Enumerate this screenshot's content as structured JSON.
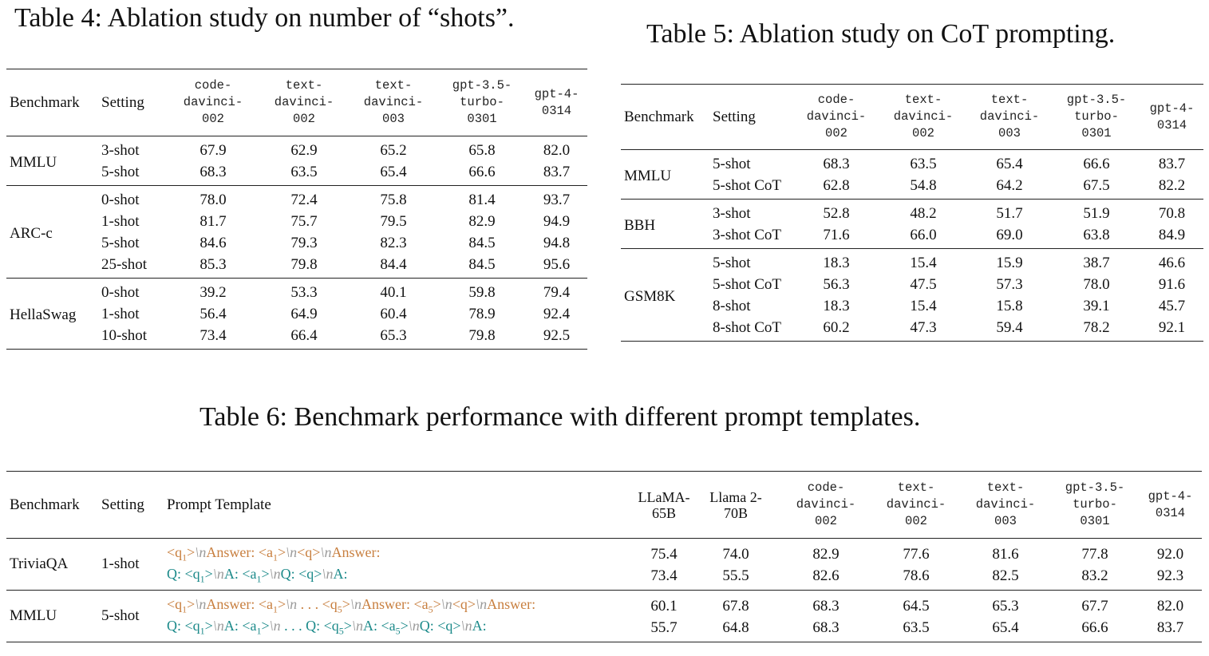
{
  "table4": {
    "caption": "Table 4: Ablation study on number of “shots”.",
    "headers": {
      "benchmark": "Benchmark",
      "setting": "Setting",
      "models": [
        [
          "code-",
          "davinci-",
          "002"
        ],
        [
          "text-",
          "davinci-",
          "002"
        ],
        [
          "text-",
          "davinci-",
          "003"
        ],
        [
          "gpt-3.5-",
          "turbo-",
          "0301"
        ],
        [
          "gpt-4-",
          "0314"
        ]
      ]
    },
    "groups": [
      {
        "benchmark": "MMLU",
        "rows": [
          {
            "setting": "3-shot",
            "values": [
              "67.9",
              "62.9",
              "65.2",
              "65.8",
              "82.0"
            ]
          },
          {
            "setting": "5-shot",
            "values": [
              "68.3",
              "63.5",
              "65.4",
              "66.6",
              "83.7"
            ]
          }
        ]
      },
      {
        "benchmark": "ARC-c",
        "rows": [
          {
            "setting": "0-shot",
            "values": [
              "78.0",
              "72.4",
              "75.8",
              "81.4",
              "93.7"
            ]
          },
          {
            "setting": "1-shot",
            "values": [
              "81.7",
              "75.7",
              "79.5",
              "82.9",
              "94.9"
            ]
          },
          {
            "setting": "5-shot",
            "values": [
              "84.6",
              "79.3",
              "82.3",
              "84.5",
              "94.8"
            ]
          },
          {
            "setting": "25-shot",
            "values": [
              "85.3",
              "79.8",
              "84.4",
              "84.5",
              "95.6"
            ]
          }
        ]
      },
      {
        "benchmark": "HellaSwag",
        "rows": [
          {
            "setting": "0-shot",
            "values": [
              "39.2",
              "53.3",
              "40.1",
              "59.8",
              "79.4"
            ]
          },
          {
            "setting": "1-shot",
            "values": [
              "56.4",
              "64.9",
              "60.4",
              "78.9",
              "92.4"
            ]
          },
          {
            "setting": "10-shot",
            "values": [
              "73.4",
              "66.4",
              "65.3",
              "79.8",
              "92.5"
            ]
          }
        ]
      }
    ]
  },
  "table5": {
    "caption": "Table 5: Ablation study on CoT prompting.",
    "headers": {
      "benchmark": "Benchmark",
      "setting": "Setting",
      "models": [
        [
          "code-",
          "davinci-",
          "002"
        ],
        [
          "text-",
          "davinci-",
          "002"
        ],
        [
          "text-",
          "davinci-",
          "003"
        ],
        [
          "gpt-3.5-",
          "turbo-",
          "0301"
        ],
        [
          "gpt-4-",
          "0314"
        ]
      ]
    },
    "groups": [
      {
        "benchmark": "MMLU",
        "rows": [
          {
            "setting": "5-shot",
            "values": [
              "68.3",
              "63.5",
              "65.4",
              "66.6",
              "83.7"
            ]
          },
          {
            "setting": "5-shot CoT",
            "values": [
              "62.8",
              "54.8",
              "64.2",
              "67.5",
              "82.2"
            ]
          }
        ]
      },
      {
        "benchmark": "BBH",
        "rows": [
          {
            "setting": "3-shot",
            "values": [
              "52.8",
              "48.2",
              "51.7",
              "51.9",
              "70.8"
            ]
          },
          {
            "setting": "3-shot CoT",
            "values": [
              "71.6",
              "66.0",
              "69.0",
              "63.8",
              "84.9"
            ]
          }
        ]
      },
      {
        "benchmark": "GSM8K",
        "rows": [
          {
            "setting": "5-shot",
            "values": [
              "18.3",
              "15.4",
              "15.9",
              "38.7",
              "46.6"
            ]
          },
          {
            "setting": "5-shot CoT",
            "values": [
              "56.3",
              "47.5",
              "57.3",
              "78.0",
              "91.6"
            ]
          },
          {
            "setting": "8-shot",
            "values": [
              "18.3",
              "15.4",
              "15.8",
              "39.1",
              "45.7"
            ]
          },
          {
            "setting": "8-shot CoT",
            "values": [
              "60.2",
              "47.3",
              "59.4",
              "78.2",
              "92.1"
            ]
          }
        ]
      }
    ]
  },
  "table6": {
    "caption": "Table 6: Benchmark performance with different prompt templates.",
    "headers": {
      "benchmark": "Benchmark",
      "setting": "Setting",
      "template": "Prompt Template",
      "serif_models": [
        [
          "LLaMA-",
          "65B"
        ],
        [
          "Llama 2-",
          "70B"
        ]
      ],
      "models": [
        [
          "code-",
          "davinci-",
          "002"
        ],
        [
          "text-",
          "davinci-",
          "002"
        ],
        [
          "text-",
          "davinci-",
          "003"
        ],
        [
          "gpt-3.5-",
          "turbo-",
          "0301"
        ],
        [
          "gpt-4-",
          "0314"
        ]
      ]
    },
    "groups": [
      {
        "benchmark": "TriviaQA",
        "setting": "1-shot",
        "rows": [
          {
            "color": "#c87f3f",
            "template": [
              [
                "<q",
                "1",
                ">"
              ],
              "\\n",
              [
                "Answer: <a",
                "1",
                ">"
              ],
              "\\n",
              [
                "<q>"
              ],
              "\\n",
              [
                "Answer:"
              ]
            ],
            "values": [
              "75.4",
              "74.0",
              "82.9",
              "77.6",
              "81.6",
              "77.8",
              "92.0"
            ]
          },
          {
            "color": "#1c8a8a",
            "template": [
              [
                "Q: <q",
                "1",
                ">"
              ],
              "\\n",
              [
                "A: <a",
                "1",
                ">"
              ],
              "\\n",
              [
                "Q: <q>"
              ],
              "\\n",
              [
                "A:"
              ]
            ],
            "values": [
              "73.4",
              "55.5",
              "82.6",
              "78.6",
              "82.5",
              "83.2",
              "92.3"
            ]
          }
        ]
      },
      {
        "benchmark": "MMLU",
        "setting": "5-shot",
        "rows": [
          {
            "color": "#c87f3f",
            "template": [
              [
                "<q",
                "1",
                ">"
              ],
              "\\n",
              [
                "Answer: <a",
                "1",
                ">"
              ],
              "\\n",
              [
                " . . . <q",
                "5",
                ">"
              ],
              "\\n",
              [
                "Answer: <a",
                "5",
                ">"
              ],
              "\\n",
              [
                "<q>"
              ],
              "\\n",
              [
                "Answer:"
              ]
            ],
            "values": [
              "60.1",
              "67.8",
              "68.3",
              "64.5",
              "65.3",
              "67.7",
              "82.0"
            ]
          },
          {
            "color": "#1c8a8a",
            "template": [
              [
                "Q: <q",
                "1",
                ">"
              ],
              "\\n",
              [
                "A: <a",
                "1",
                ">"
              ],
              "\\n",
              [
                " . . . Q: <q",
                "5",
                ">"
              ],
              "\\n",
              [
                "A: <a",
                "5",
                ">"
              ],
              "\\n",
              [
                "Q: <q>"
              ],
              "\\n",
              [
                "A:"
              ]
            ],
            "values": [
              "55.7",
              "64.8",
              "68.3",
              "63.5",
              "65.4",
              "66.6",
              "83.7"
            ]
          }
        ]
      }
    ]
  }
}
